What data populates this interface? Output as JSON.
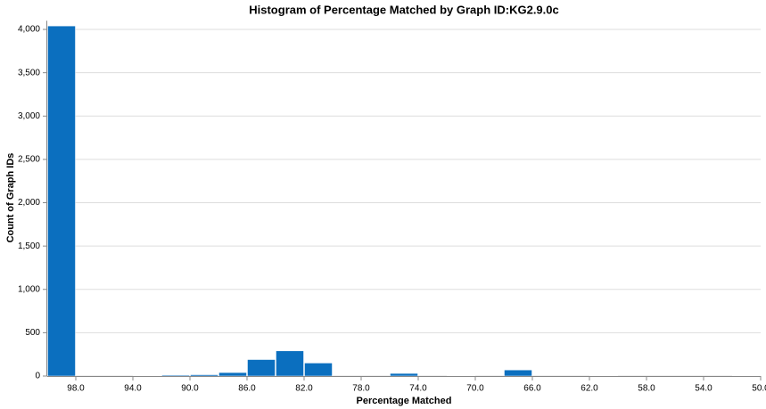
{
  "chart_data": {
    "type": "histogram",
    "title": "Histogram of Percentage Matched by Graph ID:KG2.9.0c",
    "x_label": "Percentage Matched",
    "y_label": "Count of Graph IDs",
    "bins": [
      100,
      98,
      96,
      94,
      92,
      90,
      88,
      86,
      84,
      82,
      80,
      78,
      76,
      74,
      72,
      70,
      68,
      66,
      64,
      62,
      60,
      58,
      56,
      54,
      52,
      50
    ],
    "values": [
      4040,
      0,
      0,
      5,
      10,
      15,
      40,
      190,
      290,
      150,
      0,
      0,
      30,
      0,
      5,
      0,
      70,
      0,
      0,
      3,
      0,
      0,
      0,
      0,
      3
    ],
    "color": "#0b6fbf",
    "xlim": [
      100,
      50
    ],
    "xticks": [
      {
        "value": 98,
        "label": "98.0"
      },
      {
        "value": 94,
        "label": "94.0"
      },
      {
        "value": 90,
        "label": "90.0"
      },
      {
        "value": 86,
        "label": "86.0"
      },
      {
        "value": 82,
        "label": "82.0"
      },
      {
        "value": 78,
        "label": "78.0"
      },
      {
        "value": 74,
        "label": "74.0"
      },
      {
        "value": 70,
        "label": "70.0"
      },
      {
        "value": 66,
        "label": "66.0"
      },
      {
        "value": 62,
        "label": "62.0"
      },
      {
        "value": 58,
        "label": "58.0"
      },
      {
        "value": 54,
        "label": "54.0"
      },
      {
        "value": 50,
        "label": "50.0"
      }
    ],
    "ylim": [
      0,
      4100
    ],
    "yticks": [
      0,
      500,
      {
        "value": 1000,
        "label": "1,000"
      },
      {
        "value": 1500,
        "label": "1,500"
      },
      {
        "value": 2000,
        "label": "2,000"
      },
      {
        "value": 2500,
        "label": "2,500"
      },
      {
        "value": 3000,
        "label": "3,000"
      },
      {
        "value": 3500,
        "label": "3,500"
      },
      {
        "value": 4000,
        "label": "4,000"
      }
    ],
    "grid": true
  }
}
